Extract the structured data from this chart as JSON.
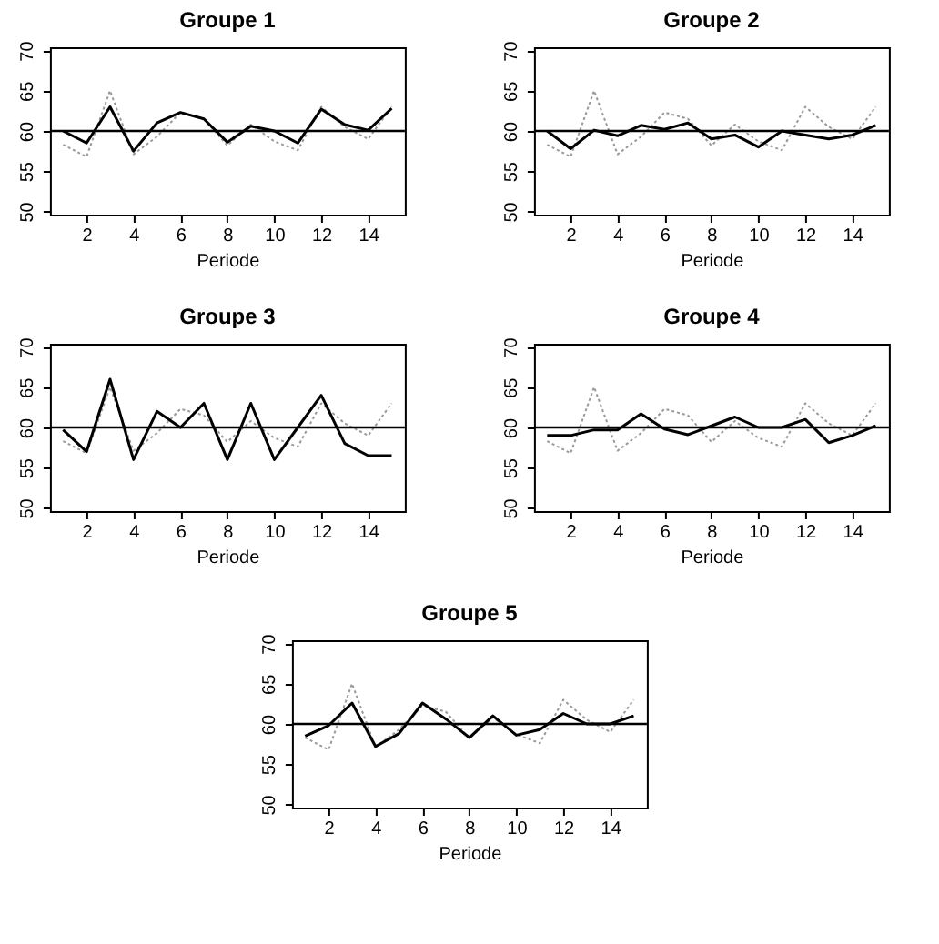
{
  "chart_data": [
    {
      "type": "line",
      "title": "Groupe 1",
      "xlabel": "Periode",
      "x": [
        1,
        2,
        3,
        4,
        5,
        6,
        7,
        8,
        9,
        10,
        11,
        12,
        13,
        14,
        15
      ],
      "xlim": [
        0.44,
        15.56
      ],
      "xticks": [
        2,
        4,
        6,
        8,
        10,
        12,
        14
      ],
      "ylim": [
        49.6,
        70.4
      ],
      "yticks": [
        50,
        55,
        60,
        65,
        70
      ],
      "ref_lines": [
        {
          "axis": "y",
          "value": 60,
          "color": "#000000"
        }
      ],
      "series": [
        {
          "color": "#999999",
          "line_style": "dotted",
          "values": [
            58.3,
            56.8,
            65,
            57.1,
            59.3,
            62.3,
            61.5,
            58.2,
            60.8,
            58.7,
            57.6,
            63,
            60.5,
            59,
            63
          ]
        },
        {
          "color": "#000000",
          "line_style": "solid",
          "values": [
            60,
            58.5,
            63,
            57.5,
            61,
            62.3,
            61.5,
            58.6,
            60.6,
            60,
            58.5,
            62.7,
            60.8,
            60.1,
            62.8
          ]
        }
      ]
    },
    {
      "type": "line",
      "title": "Groupe 2",
      "xlabel": "Periode",
      "x": [
        1,
        2,
        3,
        4,
        5,
        6,
        7,
        8,
        9,
        10,
        11,
        12,
        13,
        14,
        15
      ],
      "xlim": [
        0.44,
        15.56
      ],
      "xticks": [
        2,
        4,
        6,
        8,
        10,
        12,
        14
      ],
      "ylim": [
        49.6,
        70.4
      ],
      "yticks": [
        50,
        55,
        60,
        65,
        70
      ],
      "ref_lines": [
        {
          "axis": "y",
          "value": 60,
          "color": "#000000"
        }
      ],
      "series": [
        {
          "color": "#999999",
          "line_style": "dotted",
          "values": [
            58.3,
            56.8,
            65,
            57.1,
            59.3,
            62.3,
            61.5,
            58.2,
            60.8,
            58.7,
            57.6,
            63,
            60.5,
            59,
            63
          ]
        },
        {
          "color": "#000000",
          "line_style": "solid",
          "values": [
            60,
            57.8,
            60.1,
            59.4,
            60.7,
            60.2,
            61,
            59,
            59.5,
            58,
            60,
            59.5,
            59,
            59.5,
            60.7
          ]
        }
      ]
    },
    {
      "type": "line",
      "title": "Groupe 3",
      "xlabel": "Periode",
      "x": [
        1,
        2,
        3,
        4,
        5,
        6,
        7,
        8,
        9,
        10,
        11,
        12,
        13,
        14,
        15
      ],
      "xlim": [
        0.44,
        15.56
      ],
      "xticks": [
        2,
        4,
        6,
        8,
        10,
        12,
        14
      ],
      "ylim": [
        49.6,
        70.4
      ],
      "yticks": [
        50,
        55,
        60,
        65,
        70
      ],
      "ref_lines": [
        {
          "axis": "y",
          "value": 60,
          "color": "#000000"
        }
      ],
      "series": [
        {
          "color": "#999999",
          "line_style": "dotted",
          "values": [
            58.3,
            56.8,
            65,
            57.1,
            59.3,
            62.3,
            61.5,
            58.2,
            60.8,
            58.7,
            57.6,
            63,
            60.5,
            59,
            63
          ]
        },
        {
          "color": "#000000",
          "line_style": "solid",
          "values": [
            59.7,
            57,
            66,
            56,
            62,
            60,
            63,
            56,
            63,
            56,
            60,
            64,
            58,
            56.5,
            56.5
          ]
        }
      ]
    },
    {
      "type": "line",
      "title": "Groupe 4",
      "xlabel": "Periode",
      "x": [
        1,
        2,
        3,
        4,
        5,
        6,
        7,
        8,
        9,
        10,
        11,
        12,
        13,
        14,
        15
      ],
      "xlim": [
        0.44,
        15.56
      ],
      "xticks": [
        2,
        4,
        6,
        8,
        10,
        12,
        14
      ],
      "ylim": [
        49.6,
        70.4
      ],
      "yticks": [
        50,
        55,
        60,
        65,
        70
      ],
      "ref_lines": [
        {
          "axis": "y",
          "value": 60,
          "color": "#000000"
        }
      ],
      "series": [
        {
          "color": "#999999",
          "line_style": "dotted",
          "values": [
            58.3,
            56.8,
            65,
            57.1,
            59.3,
            62.3,
            61.5,
            58.2,
            60.8,
            58.7,
            57.6,
            63,
            60.5,
            59,
            63
          ]
        },
        {
          "color": "#000000",
          "line_style": "solid",
          "values": [
            59,
            59,
            59.7,
            59.7,
            61.7,
            59.8,
            59.1,
            60.2,
            61.3,
            60,
            60,
            61,
            58.1,
            59,
            60.2
          ]
        }
      ]
    },
    {
      "type": "line",
      "title": "Groupe 5",
      "xlabel": "Periode",
      "x": [
        1,
        2,
        3,
        4,
        5,
        6,
        7,
        8,
        9,
        10,
        11,
        12,
        13,
        14,
        15
      ],
      "xlim": [
        0.44,
        15.56
      ],
      "xticks": [
        2,
        4,
        6,
        8,
        10,
        12,
        14
      ],
      "ylim": [
        49.6,
        70.4
      ],
      "yticks": [
        50,
        55,
        60,
        65,
        70
      ],
      "ref_lines": [
        {
          "axis": "y",
          "value": 60,
          "color": "#000000"
        }
      ],
      "series": [
        {
          "color": "#999999",
          "line_style": "dotted",
          "values": [
            58.3,
            56.8,
            65,
            57.1,
            59.3,
            62.3,
            61.5,
            58.2,
            60.8,
            58.7,
            57.6,
            63,
            60.5,
            59,
            63
          ]
        },
        {
          "color": "#000000",
          "line_style": "solid",
          "values": [
            58.5,
            59.8,
            62.6,
            57.2,
            58.8,
            62.6,
            60.6,
            58.3,
            61,
            58.6,
            59.3,
            61.3,
            60,
            60,
            61
          ]
        }
      ]
    }
  ]
}
